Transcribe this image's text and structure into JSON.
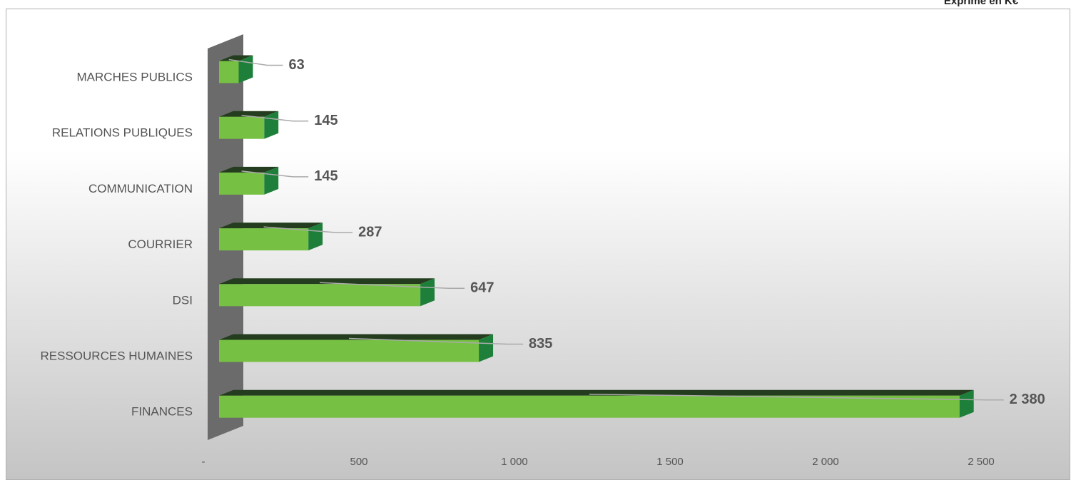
{
  "chart_data": {
    "type": "bar",
    "orientation": "horizontal",
    "title": "Exprimé en K€",
    "categories": [
      "MARCHES PUBLICS",
      "RELATIONS PUBLIQUES",
      "COMMUNICATION",
      "COURRIER",
      "DSI",
      "RESSOURCES HUMAINES",
      "FINANCES"
    ],
    "values": [
      63,
      145,
      145,
      287,
      647,
      835,
      2380
    ],
    "value_labels": [
      "63",
      "145",
      "145",
      "287",
      "647",
      "835",
      "2 380"
    ],
    "color": "#76c043",
    "xlim": [
      0,
      2500
    ],
    "xticks": [
      {
        "value": 0,
        "label": "-"
      },
      500,
      {
        "value": 1000,
        "label": "1 000"
      },
      {
        "value": 1500,
        "label": "1 500"
      },
      {
        "value": 2000,
        "label": "2 000"
      },
      {
        "value": 2500,
        "label": "2 500"
      }
    ],
    "grid": false
  }
}
